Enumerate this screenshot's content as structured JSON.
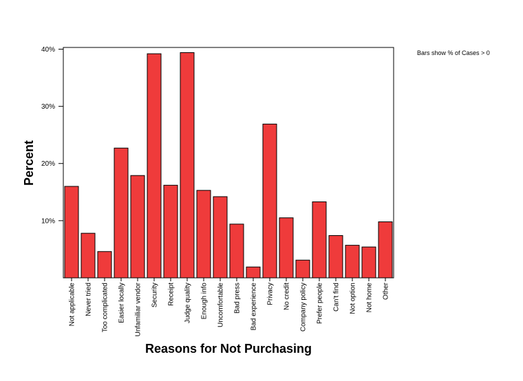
{
  "note": "Bars show % of Cases > 0",
  "chart_data": {
    "type": "bar",
    "title": "",
    "xlabel": "Reasons for Not Purchasing",
    "ylabel": "Percent",
    "ylim": [
      0,
      40.3
    ],
    "yticks": [
      10,
      20,
      30,
      40
    ],
    "ytick_labels": [
      "10%",
      "20%",
      "30%",
      "40%"
    ],
    "grid": false,
    "bar_color": "#ef3b3b",
    "categories": [
      "Not applicable",
      "Never tried",
      "Too complicated",
      "Easier locally",
      "Unfamiliar vendor",
      "Security",
      "Receipt",
      "Judge quality",
      "Enough info",
      "Uncomfortable",
      "Bad press",
      "Bad experience",
      "Privacy",
      "No credit",
      "Company policy",
      "Prefer people",
      "Can't find",
      "Not option",
      "Not home",
      "Other"
    ],
    "values": [
      16.0,
      7.8,
      4.6,
      22.7,
      17.9,
      39.2,
      16.2,
      39.4,
      15.3,
      14.2,
      9.4,
      1.9,
      26.9,
      10.5,
      3.1,
      13.3,
      7.4,
      5.7,
      5.4,
      9.8
    ]
  }
}
